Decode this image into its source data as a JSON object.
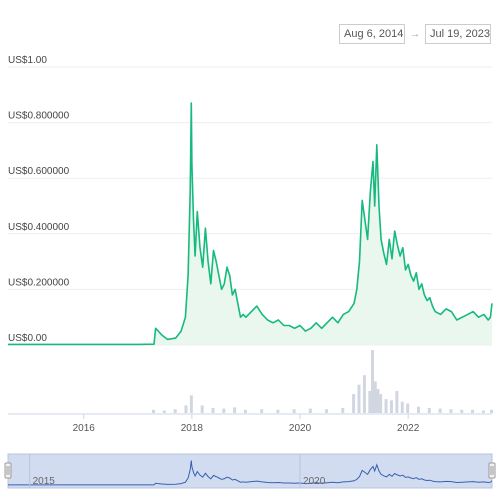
{
  "range_selector": {
    "from": "Aug 6, 2014",
    "to": "Jul 19, 2023",
    "arrow": "→"
  },
  "colors": {
    "price_line": "#16b97e",
    "price_fill": "#e9f7ef",
    "volume": "#d2d6e0",
    "navigator_mask": "#d2dcf0",
    "navigator_line": "#3a5fb0",
    "grid": "#eeeeee"
  },
  "chart_data": {
    "type": "line",
    "title": "",
    "xlabel": "",
    "ylabel": "",
    "y_ticks": [
      "US$0.00",
      "US$0.200000",
      "US$0.400000",
      "US$0.600000",
      "US$0.800000",
      "US$1.00"
    ],
    "y_tick_values": [
      0,
      0.2,
      0.4,
      0.6,
      0.8,
      1.0
    ],
    "ylim": [
      0,
      1.0
    ],
    "x_ticks": [
      "2016",
      "2018",
      "2020",
      "2022"
    ],
    "x_tick_values": [
      2016,
      2018,
      2020,
      2022
    ],
    "xlim": [
      2014.6,
      2023.55
    ],
    "navigator_labels": [
      "2015",
      "2020"
    ],
    "navigator_label_values": [
      2015,
      2020
    ],
    "grid": true,
    "legend": "none",
    "series": [
      {
        "x": [
          2014.6,
          2015.0,
          2015.5,
          2016.0,
          2016.5,
          2017.0,
          2017.3,
          2017.33,
          2017.38,
          2017.45,
          2017.55,
          2017.7,
          2017.8,
          2017.88,
          2017.93,
          2017.97,
          2017.99,
          2018.0,
          2018.03,
          2018.06,
          2018.1,
          2018.15,
          2018.2,
          2018.25,
          2018.3,
          2018.35,
          2018.4,
          2018.45,
          2018.5,
          2018.55,
          2018.6,
          2018.65,
          2018.7,
          2018.75,
          2018.8,
          2018.85,
          2018.9,
          2018.95,
          2019.0,
          2019.1,
          2019.2,
          2019.3,
          2019.4,
          2019.5,
          2019.6,
          2019.7,
          2019.8,
          2019.9,
          2020.0,
          2020.1,
          2020.2,
          2020.3,
          2020.4,
          2020.5,
          2020.6,
          2020.7,
          2020.8,
          2020.9,
          2021.0,
          2021.05,
          2021.1,
          2021.15,
          2021.2,
          2021.25,
          2021.3,
          2021.35,
          2021.38,
          2021.42,
          2021.46,
          2021.5,
          2021.55,
          2021.6,
          2021.65,
          2021.7,
          2021.75,
          2021.8,
          2021.85,
          2021.9,
          2021.95,
          2022.0,
          2022.05,
          2022.1,
          2022.15,
          2022.2,
          2022.25,
          2022.3,
          2022.35,
          2022.4,
          2022.45,
          2022.5,
          2022.6,
          2022.7,
          2022.8,
          2022.9,
          2023.0,
          2023.1,
          2023.2,
          2023.3,
          2023.4,
          2023.48,
          2023.52,
          2023.55
        ],
        "values": [
          0.002,
          0.002,
          0.002,
          0.002,
          0.002,
          0.002,
          0.003,
          0.06,
          0.05,
          0.035,
          0.02,
          0.025,
          0.05,
          0.1,
          0.25,
          0.55,
          0.87,
          0.65,
          0.45,
          0.32,
          0.48,
          0.35,
          0.28,
          0.42,
          0.3,
          0.22,
          0.34,
          0.3,
          0.25,
          0.2,
          0.22,
          0.28,
          0.25,
          0.18,
          0.2,
          0.15,
          0.1,
          0.11,
          0.1,
          0.12,
          0.14,
          0.11,
          0.09,
          0.08,
          0.09,
          0.07,
          0.07,
          0.06,
          0.07,
          0.05,
          0.06,
          0.08,
          0.06,
          0.08,
          0.1,
          0.08,
          0.11,
          0.12,
          0.15,
          0.2,
          0.3,
          0.52,
          0.45,
          0.38,
          0.55,
          0.66,
          0.5,
          0.72,
          0.5,
          0.38,
          0.33,
          0.29,
          0.38,
          0.31,
          0.41,
          0.36,
          0.32,
          0.35,
          0.27,
          0.29,
          0.25,
          0.23,
          0.26,
          0.2,
          0.22,
          0.18,
          0.16,
          0.17,
          0.14,
          0.12,
          0.11,
          0.13,
          0.12,
          0.09,
          0.1,
          0.11,
          0.12,
          0.1,
          0.11,
          0.09,
          0.1,
          0.15
        ]
      }
    ],
    "volume": {
      "x": [
        2017.3,
        2017.5,
        2017.7,
        2017.9,
        2018.0,
        2018.2,
        2018.4,
        2018.6,
        2018.8,
        2019.0,
        2019.3,
        2019.6,
        2019.9,
        2020.2,
        2020.5,
        2020.8,
        2021.0,
        2021.1,
        2021.2,
        2021.3,
        2021.35,
        2021.4,
        2021.45,
        2021.5,
        2021.6,
        2021.7,
        2021.8,
        2021.9,
        2022.0,
        2022.2,
        2022.4,
        2022.6,
        2022.8,
        2023.0,
        2023.2,
        2023.4,
        2023.55
      ],
      "values": [
        0.05,
        0.04,
        0.06,
        0.12,
        0.28,
        0.12,
        0.08,
        0.07,
        0.09,
        0.05,
        0.06,
        0.05,
        0.06,
        0.07,
        0.06,
        0.08,
        0.3,
        0.45,
        0.6,
        0.35,
        1.0,
        0.5,
        0.38,
        0.3,
        0.22,
        0.2,
        0.35,
        0.18,
        0.15,
        0.1,
        0.08,
        0.07,
        0.06,
        0.05,
        0.05,
        0.04,
        0.05
      ]
    }
  }
}
